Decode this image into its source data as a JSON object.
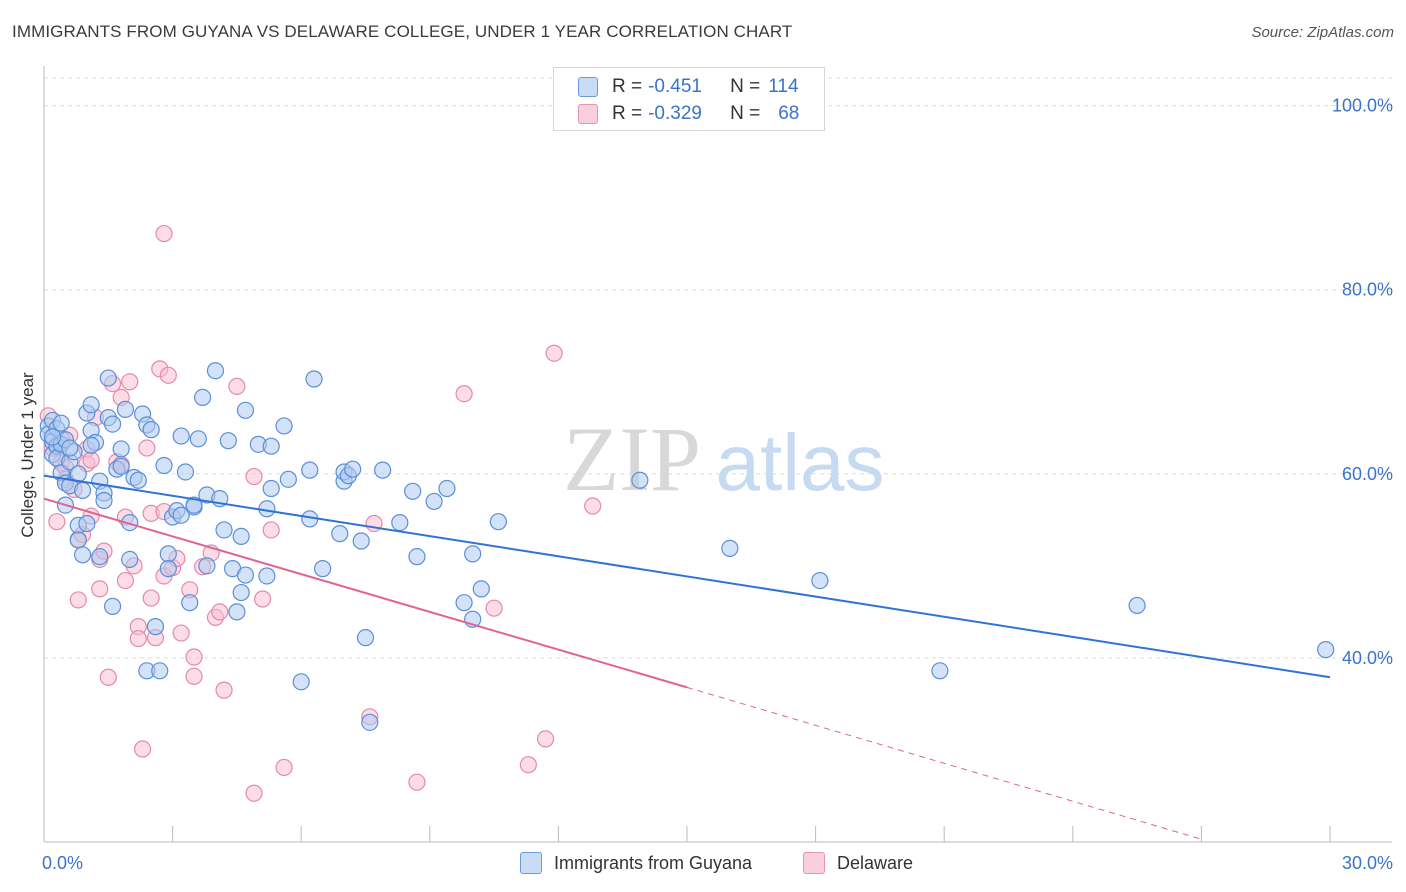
{
  "title": "IMMIGRANTS FROM GUYANA VS DELAWARE COLLEGE, UNDER 1 YEAR CORRELATION CHART",
  "source": "Source: ZipAtlas.com",
  "watermark": {
    "zip": "ZIP",
    "atlas": "atlas"
  },
  "legend": {
    "r_label": "R = ",
    "n_label": "N = ",
    "entries": [
      {
        "r": "-0.451",
        "n": "114"
      },
      {
        "r": "-0.329",
        "n": "68"
      }
    ]
  },
  "colors": {
    "blue_fill": "#aecbf0",
    "blue_stroke": "#5b8fd8",
    "blue_line": "#2f74d4",
    "pink_fill": "#f7bfd3",
    "pink_stroke": "#e58aa9",
    "pink_line": "#e0648f",
    "tick_label": "#3a73c8",
    "grid": "#dedede"
  },
  "chart_data": {
    "type": "scatter",
    "title": "IMMIGRANTS FROM GUYANA VS DELAWARE COLLEGE, UNDER 1 YEAR CORRELATION CHART",
    "xlabel": "",
    "ylabel": "College, Under 1 year",
    "xlim": [
      0,
      30
    ],
    "ylim": [
      20,
      103
    ],
    "x_tick_labels": [
      "0.0%",
      "30.0%"
    ],
    "y_ticks": [
      40,
      60,
      80,
      100
    ],
    "y_tick_labels": [
      "40.0%",
      "60.0%",
      "80.0%",
      "100.0%"
    ],
    "grid": true,
    "legend_position": "bottom-center",
    "series": [
      {
        "name": "Immigrants from Guyana",
        "trend": {
          "x0": 0,
          "y0": 59.8,
          "x1": 30,
          "y1": 37.9
        },
        "points": [
          [
            0.1,
            65.2
          ],
          [
            0.1,
            64.3
          ],
          [
            0.2,
            65.8
          ],
          [
            0.2,
            63.5
          ],
          [
            0.2,
            62.1
          ],
          [
            0.3,
            64.9
          ],
          [
            0.3,
            63.0
          ],
          [
            0.3,
            61.7
          ],
          [
            0.4,
            65.5
          ],
          [
            0.4,
            63.2
          ],
          [
            0.4,
            60.1
          ],
          [
            0.5,
            59.0
          ],
          [
            0.5,
            56.6
          ],
          [
            0.5,
            63.7
          ],
          [
            0.6,
            61.3
          ],
          [
            0.6,
            58.7
          ],
          [
            0.7,
            62.4
          ],
          [
            0.8,
            54.4
          ],
          [
            0.8,
            60.0
          ],
          [
            0.8,
            52.8
          ],
          [
            0.9,
            51.2
          ],
          [
            1.0,
            54.6
          ],
          [
            1.0,
            66.6
          ],
          [
            1.1,
            67.5
          ],
          [
            1.1,
            64.7
          ],
          [
            1.2,
            63.4
          ],
          [
            1.3,
            59.2
          ],
          [
            1.3,
            51.0
          ],
          [
            1.4,
            57.9
          ],
          [
            1.4,
            57.1
          ],
          [
            1.5,
            70.4
          ],
          [
            1.5,
            66.1
          ],
          [
            1.6,
            45.6
          ],
          [
            1.6,
            65.4
          ],
          [
            1.7,
            60.5
          ],
          [
            1.8,
            62.7
          ],
          [
            1.8,
            60.8
          ],
          [
            1.9,
            67.0
          ],
          [
            2.0,
            54.7
          ],
          [
            2.0,
            50.7
          ],
          [
            2.1,
            59.6
          ],
          [
            2.2,
            59.3
          ],
          [
            2.3,
            66.5
          ],
          [
            2.4,
            38.6
          ],
          [
            2.4,
            65.3
          ],
          [
            2.5,
            64.8
          ],
          [
            2.6,
            43.4
          ],
          [
            2.7,
            38.6
          ],
          [
            2.9,
            51.3
          ],
          [
            2.9,
            49.7
          ],
          [
            3.0,
            55.3
          ],
          [
            3.1,
            56.0
          ],
          [
            3.2,
            55.5
          ],
          [
            3.2,
            64.1
          ],
          [
            3.3,
            60.2
          ],
          [
            3.4,
            46.0
          ],
          [
            3.5,
            56.4
          ],
          [
            3.5,
            56.6
          ],
          [
            3.7,
            68.3
          ],
          [
            3.8,
            57.7
          ],
          [
            3.8,
            50.0
          ],
          [
            4.0,
            71.2
          ],
          [
            4.1,
            57.3
          ],
          [
            4.2,
            53.9
          ],
          [
            4.3,
            63.6
          ],
          [
            4.4,
            49.7
          ],
          [
            4.5,
            45.0
          ],
          [
            4.6,
            53.2
          ],
          [
            4.6,
            47.1
          ],
          [
            4.7,
            66.9
          ],
          [
            4.7,
            49.0
          ],
          [
            5.0,
            63.2
          ],
          [
            5.2,
            48.9
          ],
          [
            5.2,
            56.2
          ],
          [
            5.3,
            63.0
          ],
          [
            5.3,
            58.4
          ],
          [
            5.6,
            65.2
          ],
          [
            5.7,
            59.4
          ],
          [
            6.0,
            37.4
          ],
          [
            6.2,
            60.4
          ],
          [
            6.2,
            55.1
          ],
          [
            6.3,
            70.3
          ],
          [
            6.5,
            49.7
          ],
          [
            6.9,
            53.5
          ],
          [
            7.0,
            59.2
          ],
          [
            7.0,
            60.2
          ],
          [
            7.1,
            59.8
          ],
          [
            7.2,
            60.5
          ],
          [
            7.4,
            52.7
          ],
          [
            7.5,
            42.2
          ],
          [
            7.6,
            33.0
          ],
          [
            7.9,
            60.4
          ],
          [
            8.3,
            54.7
          ],
          [
            8.6,
            58.1
          ],
          [
            8.7,
            51.0
          ],
          [
            9.1,
            57.0
          ],
          [
            9.4,
            58.4
          ],
          [
            9.8,
            46.0
          ],
          [
            10.0,
            44.2
          ],
          [
            10.0,
            51.3
          ],
          [
            10.2,
            47.5
          ],
          [
            10.6,
            54.8
          ],
          [
            13.9,
            59.3
          ],
          [
            16.0,
            51.9
          ],
          [
            18.1,
            48.4
          ],
          [
            20.9,
            38.6
          ],
          [
            25.5,
            45.7
          ],
          [
            29.9,
            40.9
          ],
          [
            0.6,
            62.8
          ],
          [
            1.1,
            63.1
          ],
          [
            0.9,
            58.2
          ],
          [
            2.8,
            60.9
          ],
          [
            3.6,
            63.8
          ],
          [
            0.2,
            64.0
          ]
        ]
      },
      {
        "name": "Delaware",
        "trend": {
          "x0": 0,
          "y0": 57.3,
          "x1": 15,
          "y1": 36.8
        },
        "trend_dashed": {
          "x0": 15,
          "y0": 36.8,
          "x1": 27,
          "y1": 20.3
        },
        "points": [
          [
            0.1,
            66.3
          ],
          [
            0.2,
            62.8
          ],
          [
            0.3,
            63.1
          ],
          [
            0.3,
            54.8
          ],
          [
            0.4,
            61.2
          ],
          [
            0.5,
            60.7
          ],
          [
            0.5,
            59.4
          ],
          [
            0.6,
            64.2
          ],
          [
            0.7,
            58.3
          ],
          [
            0.8,
            46.3
          ],
          [
            0.8,
            52.9
          ],
          [
            0.9,
            53.4
          ],
          [
            1.0,
            61.1
          ],
          [
            1.0,
            62.7
          ],
          [
            1.1,
            61.5
          ],
          [
            1.1,
            55.4
          ],
          [
            1.3,
            50.7
          ],
          [
            1.3,
            47.5
          ],
          [
            1.4,
            51.6
          ],
          [
            1.5,
            37.9
          ],
          [
            1.6,
            69.8
          ],
          [
            1.7,
            61.3
          ],
          [
            1.8,
            68.3
          ],
          [
            1.8,
            61.0
          ],
          [
            1.9,
            55.3
          ],
          [
            1.9,
            48.4
          ],
          [
            2.0,
            70.0
          ],
          [
            2.1,
            50.0
          ],
          [
            2.2,
            43.4
          ],
          [
            2.2,
            42.1
          ],
          [
            2.3,
            30.1
          ],
          [
            2.4,
            62.8
          ],
          [
            2.5,
            55.7
          ],
          [
            2.5,
            46.5
          ],
          [
            2.6,
            42.2
          ],
          [
            2.7,
            71.4
          ],
          [
            2.8,
            55.9
          ],
          [
            2.8,
            48.9
          ],
          [
            2.8,
            86.1
          ],
          [
            2.9,
            70.7
          ],
          [
            3.0,
            49.8
          ],
          [
            3.1,
            50.8
          ],
          [
            3.2,
            42.7
          ],
          [
            3.4,
            47.4
          ],
          [
            3.5,
            38.0
          ],
          [
            3.5,
            40.1
          ],
          [
            3.7,
            49.9
          ],
          [
            3.9,
            51.4
          ],
          [
            4.0,
            44.4
          ],
          [
            4.1,
            45.0
          ],
          [
            4.2,
            36.5
          ],
          [
            4.5,
            69.5
          ],
          [
            4.9,
            59.7
          ],
          [
            4.9,
            25.3
          ],
          [
            5.1,
            46.4
          ],
          [
            5.3,
            53.9
          ],
          [
            5.6,
            28.1
          ],
          [
            7.6,
            33.6
          ],
          [
            7.7,
            54.6
          ],
          [
            8.7,
            26.5
          ],
          [
            9.8,
            68.7
          ],
          [
            10.5,
            45.4
          ],
          [
            11.3,
            28.4
          ],
          [
            11.7,
            31.2
          ],
          [
            11.9,
            73.1
          ],
          [
            12.8,
            56.5
          ],
          [
            0.4,
            63.8
          ],
          [
            1.2,
            66.1
          ]
        ]
      }
    ]
  }
}
